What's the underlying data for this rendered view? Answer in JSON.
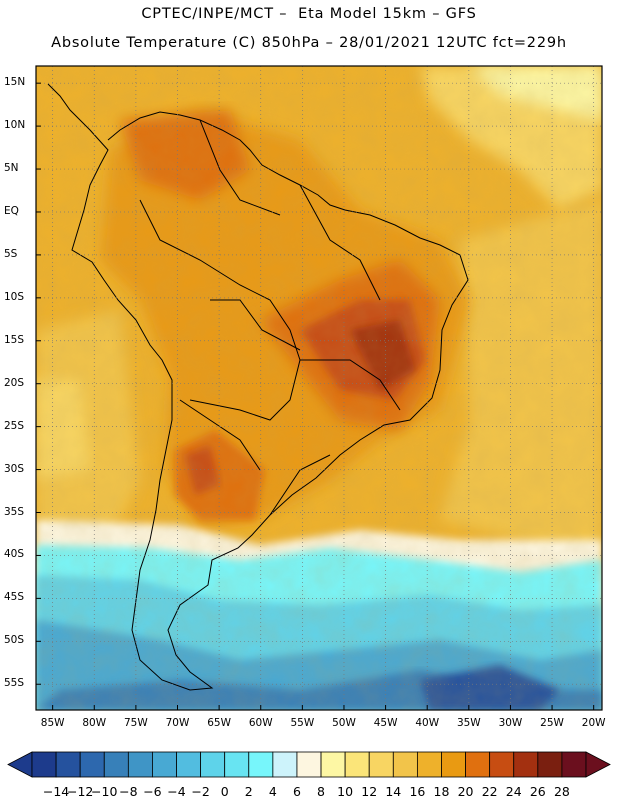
{
  "header": {
    "line1": "CPTEC/INPE/MCT –  Eta Model 15km – GFS",
    "line2": "Absolute Temperature (C) 850hPa – 28/01/2021 12UTC fct=229h"
  },
  "map": {
    "region": "South America",
    "lat_labels": [
      "15N",
      "10N",
      "5N",
      "EQ",
      "5S",
      "10S",
      "15S",
      "20S",
      "25S",
      "30S",
      "35S",
      "40S",
      "45S",
      "50S",
      "55S"
    ],
    "lat_values": [
      15,
      10,
      5,
      0,
      -5,
      -10,
      -15,
      -20,
      -25,
      -30,
      -35,
      -40,
      -45,
      -50,
      -55
    ],
    "lon_labels": [
      "85W",
      "80W",
      "75W",
      "70W",
      "65W",
      "60W",
      "55W",
      "50W",
      "45W",
      "40W",
      "35W",
      "30W",
      "25W",
      "20W"
    ],
    "lon_values": [
      -85,
      -80,
      -75,
      -70,
      -65,
      -60,
      -55,
      -50,
      -45,
      -40,
      -35,
      -30,
      -25,
      -20
    ],
    "lat_range": [
      -58,
      17
    ],
    "lon_range": [
      -87,
      -19
    ],
    "grid": "dotted"
  },
  "colorbar": {
    "labels": [
      "-14",
      "-12",
      "-10",
      "-8",
      "-6",
      "-4",
      "-2",
      "0",
      "2",
      "4",
      "6",
      "8",
      "10",
      "12",
      "14",
      "16",
      "18",
      "20",
      "22",
      "24",
      "26",
      "28"
    ],
    "colors": [
      "#1d3b8c",
      "#25529e",
      "#2d68ae",
      "#3780b9",
      "#3f95c6",
      "#48a9d3",
      "#52bde0",
      "#5ed3ea",
      "#68e4f2",
      "#77f6fb",
      "#cdf3fb",
      "#fdf6e0",
      "#fdf7a4",
      "#fbe579",
      "#f8d562",
      "#f2c44a",
      "#eeb12b",
      "#e99a12",
      "#e0700f",
      "#c74d12",
      "#a33010",
      "#7a1f10",
      "#6b0f1e"
    ],
    "unit": "C"
  }
}
